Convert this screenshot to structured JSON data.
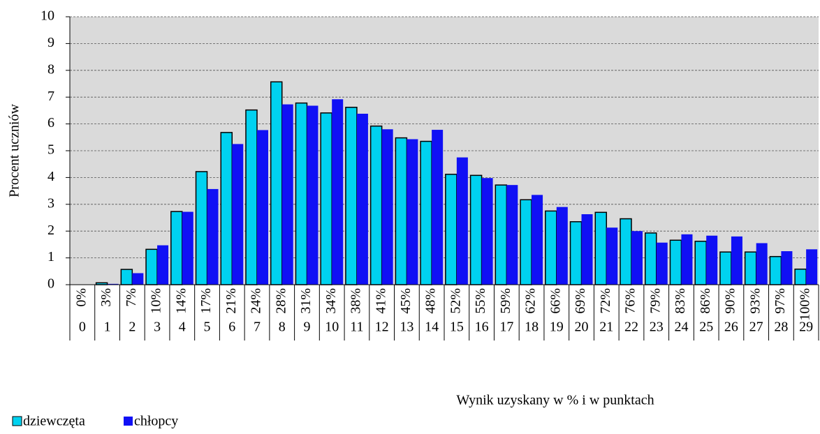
{
  "chart_data": {
    "type": "bar",
    "x_label": "Wynik uzyskany w % i w punktach",
    "y_label": "Procent uczniów",
    "categories": [
      "0%",
      "3%",
      "7%",
      "10%",
      "14%",
      "17%",
      "21%",
      "24%",
      "28%",
      "31%",
      "34%",
      "38%",
      "41%",
      "45%",
      "48%",
      "52%",
      "55%",
      "59%",
      "62%",
      "66%",
      "69%",
      "72%",
      "76%",
      "79%",
      "83%",
      "86%",
      "90%",
      "93%",
      "97%",
      "100%"
    ],
    "points": [
      0,
      1,
      2,
      3,
      4,
      5,
      6,
      7,
      8,
      9,
      10,
      11,
      12,
      13,
      14,
      15,
      16,
      17,
      18,
      19,
      20,
      21,
      22,
      23,
      24,
      25,
      26,
      27,
      28,
      29
    ],
    "series": [
      {
        "name": "dziewczęta",
        "color": "#00d2f0",
        "values": [
          0,
          0.07,
          0.57,
          1.32,
          2.73,
          4.22,
          5.68,
          6.52,
          7.57,
          6.78,
          6.41,
          6.62,
          5.92,
          5.48,
          5.35,
          4.12,
          4.08,
          3.72,
          3.17,
          2.75,
          2.35,
          2.7,
          2.46,
          1.93,
          1.66,
          1.62,
          1.22,
          1.22,
          1.05,
          0.58
        ]
      },
      {
        "name": "chłopcy",
        "color": "#1010f5",
        "values": [
          0,
          0.03,
          0.43,
          1.47,
          2.72,
          3.57,
          5.25,
          5.77,
          6.73,
          6.68,
          6.92,
          6.38,
          5.8,
          5.43,
          5.78,
          4.75,
          3.98,
          3.72,
          3.35,
          2.9,
          2.63,
          2.13,
          2.0,
          1.57,
          1.88,
          1.83,
          1.8,
          1.55,
          1.25,
          1.32
        ]
      }
    ],
    "ylim": [
      0,
      10
    ],
    "yticks": [
      0,
      1,
      2,
      3,
      4,
      5,
      6,
      7,
      8,
      9,
      10
    ],
    "grid": true,
    "legend": "bottom-left"
  }
}
